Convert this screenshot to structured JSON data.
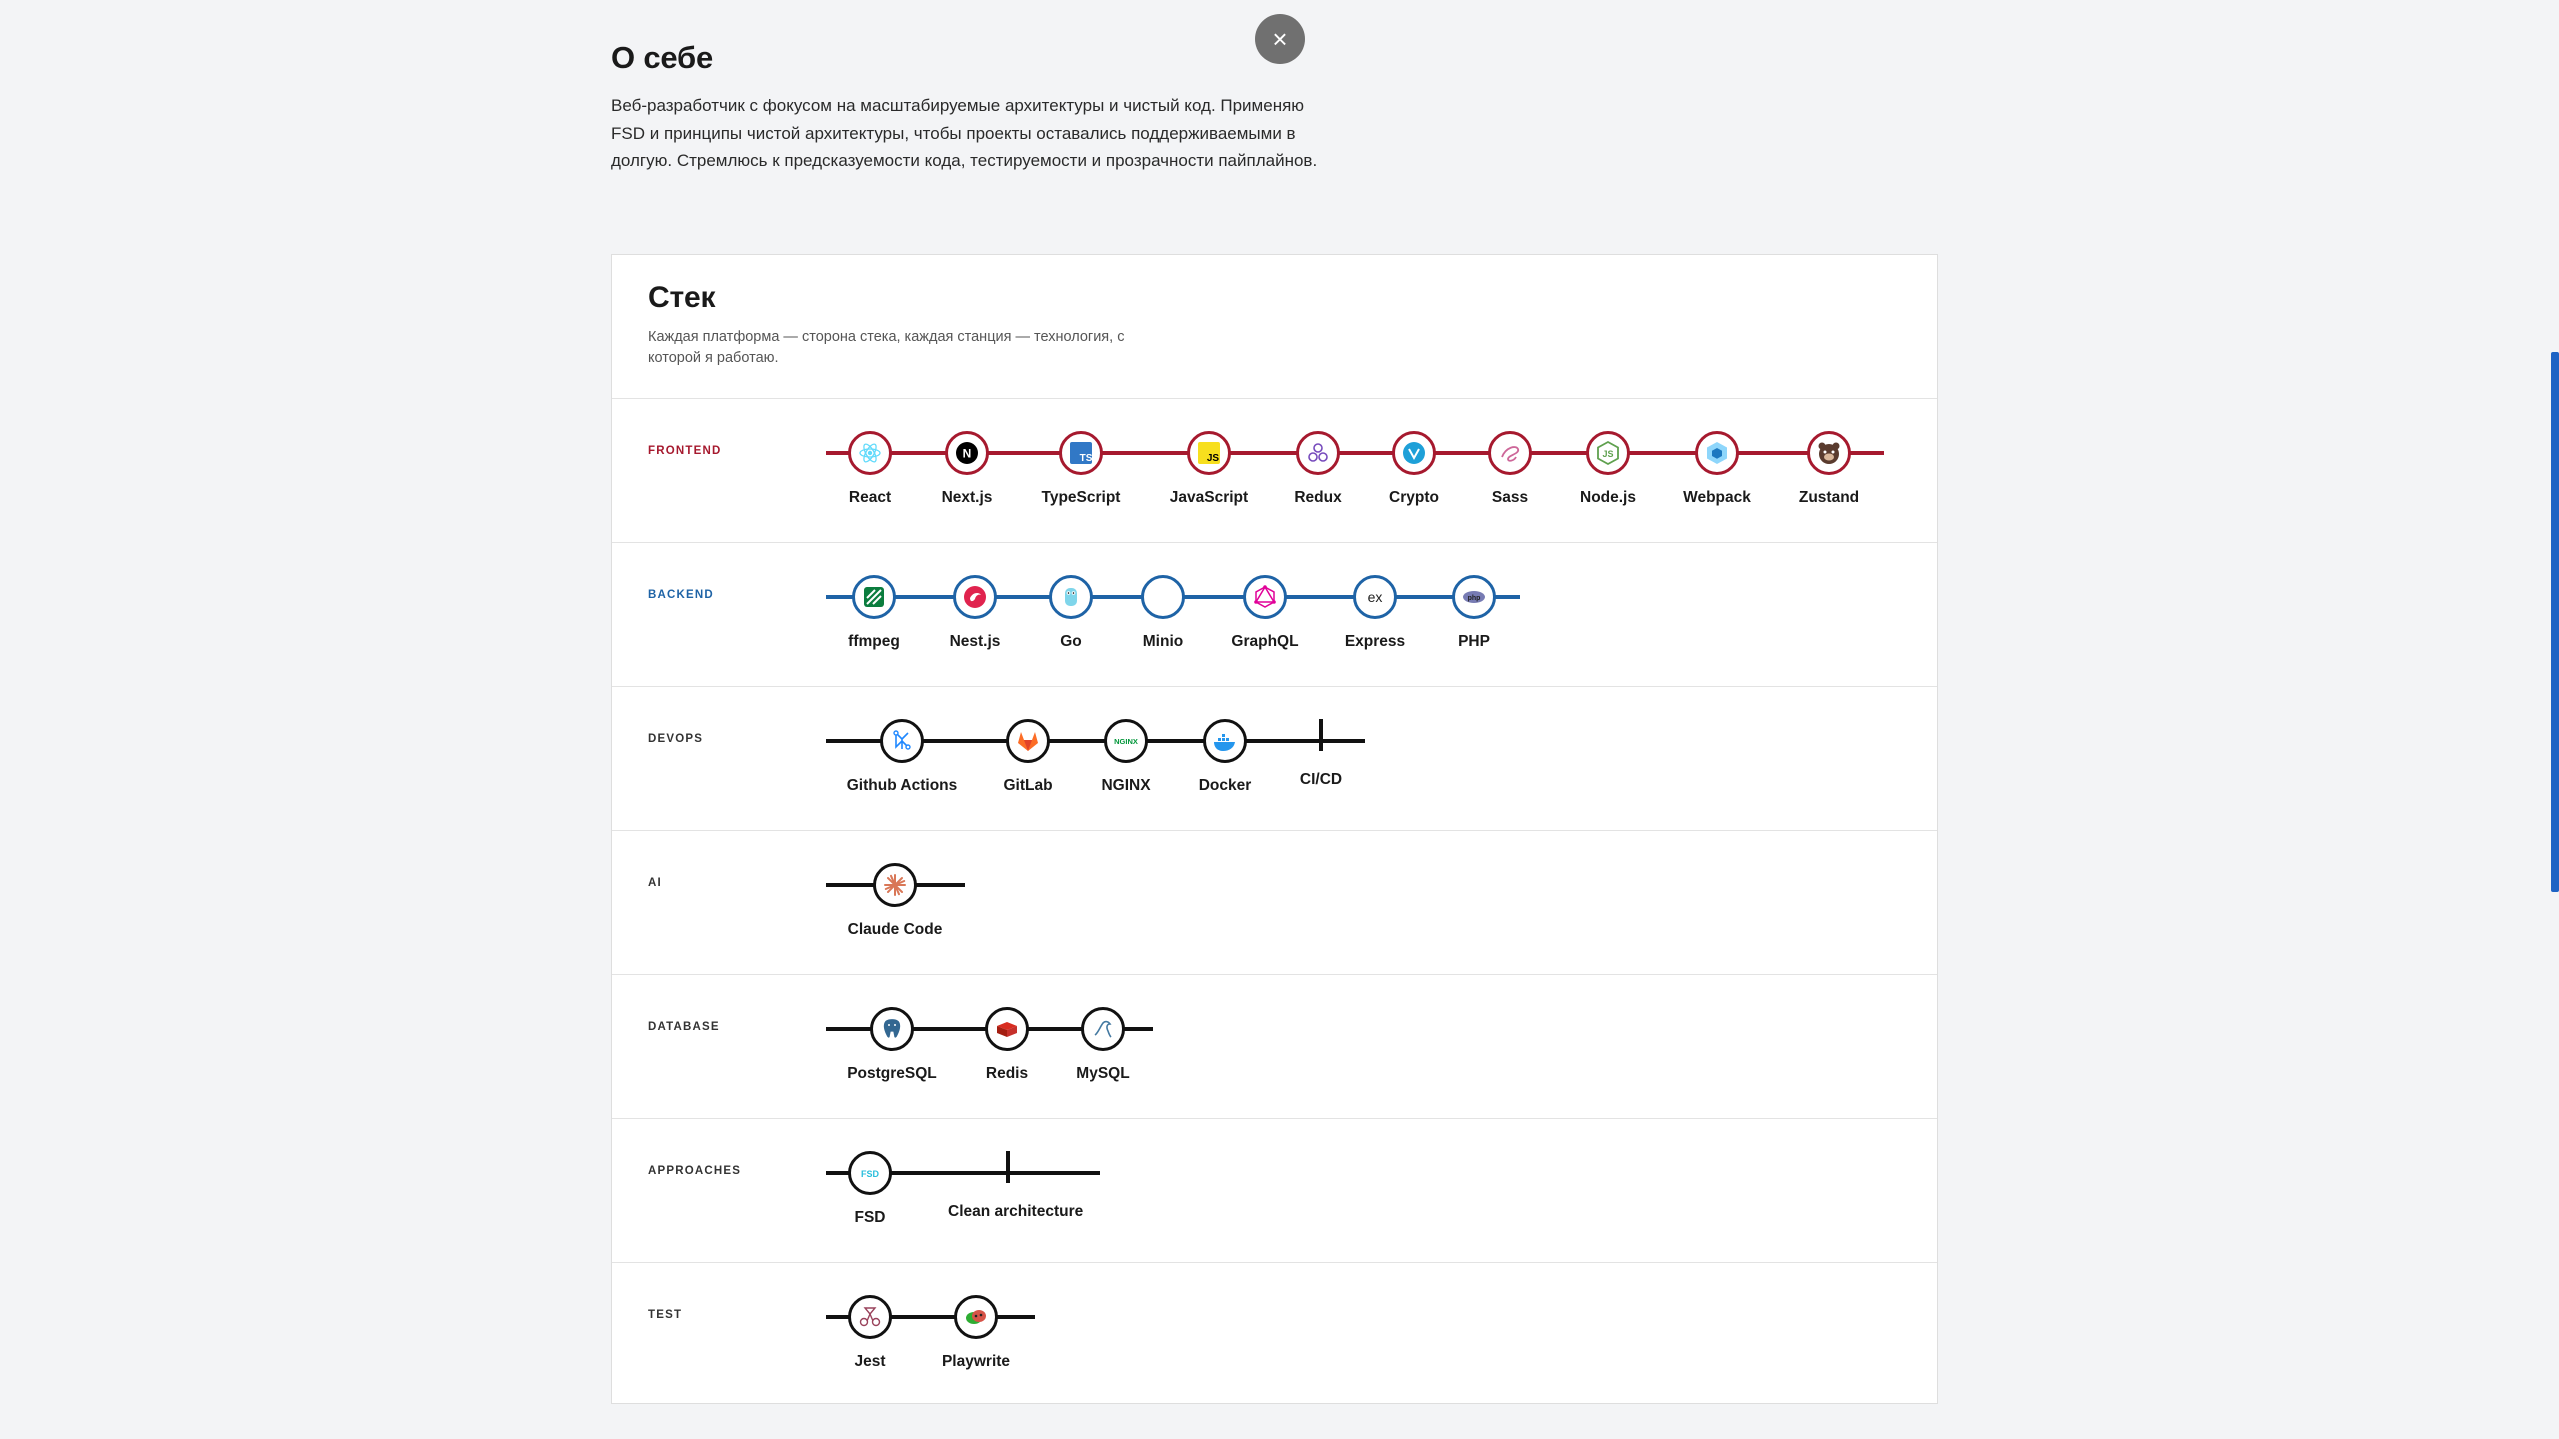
{
  "about": {
    "title": "О себе",
    "text": "Веб-разработчик с фокусом на масштабируемые архитектуры и чистый код. Применяю FSD и принципы чистой архитектуры, чтобы проекты оставались поддерживаемыми в долгую. Стремлюсь к предсказуемости кода, тестируемости и прозрачности пайплайнов."
  },
  "close_icon": "×",
  "stack": {
    "title": "Стек",
    "subtitle": "Каждая платформа — сторона стека, каждая станция — технология, с которой я работаю.",
    "lines": [
      {
        "label": "FRONTEND",
        "color": "#a6192e",
        "stations": [
          {
            "name": "React",
            "icon": "react-icon"
          },
          {
            "name": "Next.js",
            "icon": "nextjs-icon"
          },
          {
            "name": "TypeScript",
            "icon": "typescript-icon"
          },
          {
            "name": "JavaScript",
            "icon": "javascript-icon"
          },
          {
            "name": "Redux",
            "icon": "redux-icon"
          },
          {
            "name": "Crypto",
            "icon": "crypto-icon"
          },
          {
            "name": "Sass",
            "icon": "sass-icon"
          },
          {
            "name": "Node.js",
            "icon": "nodejs-icon"
          },
          {
            "name": "Webpack",
            "icon": "webpack-icon"
          },
          {
            "name": "Zustand",
            "icon": "zustand-icon"
          }
        ]
      },
      {
        "label": "BACKEND",
        "color": "#1e63a6",
        "stations": [
          {
            "name": "ffmpeg",
            "icon": "ffmpeg-icon"
          },
          {
            "name": "Nest.js",
            "icon": "nestjs-icon"
          },
          {
            "name": "Go",
            "icon": "go-icon"
          },
          {
            "name": "Minio",
            "icon": "minio-icon"
          },
          {
            "name": "GraphQL",
            "icon": "graphql-icon"
          },
          {
            "name": "Express",
            "icon": "express-icon"
          },
          {
            "name": "PHP",
            "icon": "php-icon"
          }
        ]
      },
      {
        "label": "DEVOPS",
        "color": "#111111",
        "stations": [
          {
            "name": "Github Actions",
            "icon": "github-actions-icon"
          },
          {
            "name": "GitLab",
            "icon": "gitlab-icon"
          },
          {
            "name": "NGINX",
            "icon": "nginx-icon"
          },
          {
            "name": "Docker",
            "icon": "docker-icon"
          },
          {
            "name": "CI/CD",
            "icon": "",
            "tick": true
          }
        ]
      },
      {
        "label": "AI",
        "color": "#111111",
        "stations": [
          {
            "name": "Claude Code",
            "icon": "claude-icon"
          }
        ]
      },
      {
        "label": "DATABASE",
        "color": "#111111",
        "stations": [
          {
            "name": "PostgreSQL",
            "icon": "postgresql-icon"
          },
          {
            "name": "Redis",
            "icon": "redis-icon"
          },
          {
            "name": "MySQL",
            "icon": "mysql-icon"
          }
        ]
      },
      {
        "label": "APPROACHES",
        "color": "#111111",
        "stations": [
          {
            "name": "FSD",
            "icon": "fsd-icon"
          },
          {
            "name": "Clean architecture",
            "icon": "",
            "tick": true
          }
        ]
      },
      {
        "label": "TEST",
        "color": "#111111",
        "stations": [
          {
            "name": "Jest",
            "icon": "jest-icon"
          },
          {
            "name": "Playwrite",
            "icon": "playwright-icon"
          }
        ]
      }
    ]
  }
}
